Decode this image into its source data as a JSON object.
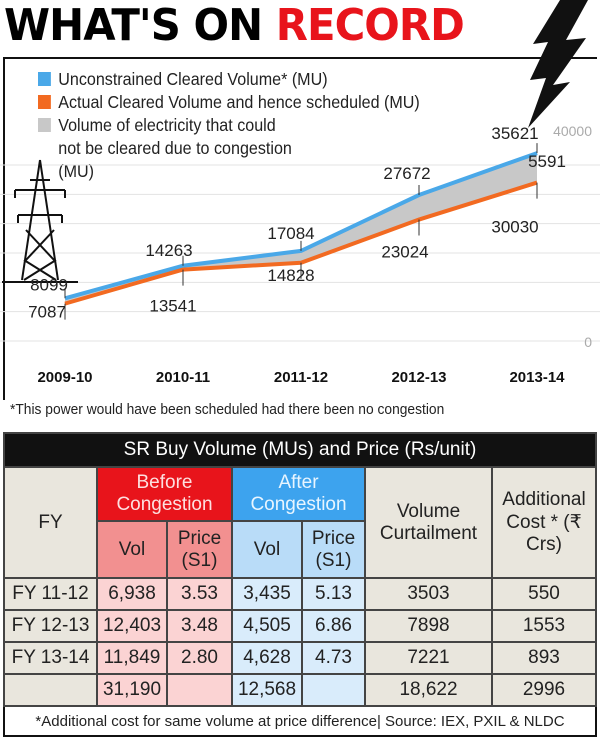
{
  "title": {
    "part1": "WHAT'S ON",
    "part2": "RECORD"
  },
  "colors": {
    "unconstrained": "#4aa8e8",
    "actual": "#f26a21",
    "congestion": "#c8c8c8",
    "accent": "#e8141b"
  },
  "icons": [
    "lightning-bolt-icon",
    "power-pylon-icon"
  ],
  "chart_data": {
    "type": "line",
    "categories": [
      "2009-10",
      "2010-11",
      "2011-12",
      "2012-13",
      "2013-14"
    ],
    "series": [
      {
        "name": "Unconstrained Cleared Volume* (MU)",
        "values": [
          8099,
          14263,
          17084,
          27672,
          35621
        ]
      },
      {
        "name": "Actual Cleared Volume and hence scheduled (MU)",
        "values": [
          7087,
          13541,
          14828,
          23024,
          30030
        ]
      }
    ],
    "area_label": "Volume of electricity that could not be cleared due to congestion (MU)",
    "annotations": [
      {
        "category": "2013-14",
        "text": "5591"
      }
    ],
    "ylim": [
      0,
      40000
    ],
    "ytick_labels": [
      "0",
      "40000"
    ],
    "grid": true,
    "legend": "top-left"
  },
  "footnote_chart": "*This power would have been scheduled had there been no congestion",
  "table": {
    "title": "SR Buy Volume (MUs) and Price (Rs/unit)",
    "headers": {
      "fy": "FY",
      "before": "Before Congestion",
      "after": "After Congestion",
      "vol": "Vol",
      "price": "Price (S1)",
      "curtail": "Volume Curtailment",
      "cost": "Additional Cost * (₹ Crs)"
    },
    "rows": [
      [
        "FY 11-12",
        "6,938",
        "3.53",
        "3,435",
        "5.13",
        "3503",
        "550"
      ],
      [
        "FY 12-13",
        "12,403",
        "3.48",
        "4,505",
        "6.86",
        "7898",
        "1553"
      ],
      [
        "FY 13-14",
        "11,849",
        "2.80",
        "4,628",
        "4.73",
        "7221",
        "893"
      ],
      [
        "",
        "31,190",
        "",
        "12,568",
        "",
        "18,622",
        "2996"
      ]
    ],
    "note": "*Additional cost for same volume at price difference| Source: IEX, PXIL & NLDC"
  }
}
